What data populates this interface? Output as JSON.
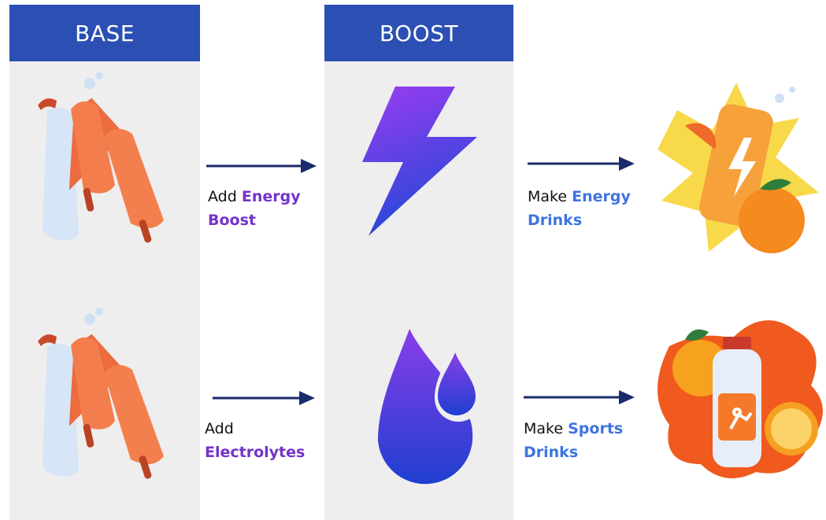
{
  "columns": [
    {
      "header": "BASE"
    },
    {
      "header": "BOOST"
    }
  ],
  "rows": [
    {
      "step": {
        "verb": "Add",
        "term": "Energy Boost"
      },
      "result": {
        "verb": "Make",
        "term": "Energy Drinks"
      }
    },
    {
      "step": {
        "verb": "Add",
        "term": "Electrolytes"
      },
      "result": {
        "verb": "Make",
        "term": "Sports Drinks"
      }
    }
  ]
}
